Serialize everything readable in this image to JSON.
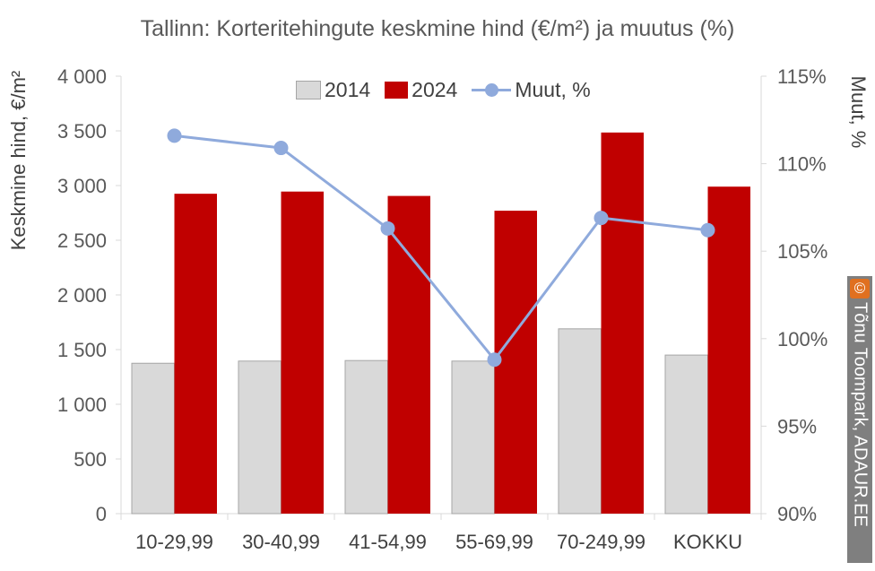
{
  "chart_data": {
    "type": "bar",
    "title": "Tallinn: Korteritehingute keskmine hind (€/m²) ja muutus (%)",
    "ylabel": "Keskmine hind, €/m²",
    "y2label": "Muut, %",
    "categories": [
      "10-29,99",
      "30-40,99",
      "41-54,99",
      "55-69,99",
      "70-249,99",
      "KOKKU"
    ],
    "ylim": [
      0,
      4000
    ],
    "y2lim": [
      90,
      115
    ],
    "yticks": [
      0,
      500,
      1000,
      1500,
      2000,
      2500,
      3000,
      3500,
      4000
    ],
    "ytick_labels": [
      "0",
      "500",
      "1 000",
      "1 500",
      "2 000",
      "2 500",
      "3 000",
      "3 500",
      "4 000"
    ],
    "y2ticks": [
      90,
      95,
      100,
      105,
      110,
      115
    ],
    "y2tick_labels": [
      "90%",
      "95%",
      "100%",
      "105%",
      "110%",
      "115%"
    ],
    "series": [
      {
        "name": "2014",
        "type": "bar",
        "color": "#d9d9d9",
        "values": [
          1375,
          1395,
          1400,
          1395,
          1690,
          1450
        ]
      },
      {
        "name": "2024",
        "type": "bar",
        "color": "#c00000",
        "values": [
          2925,
          2945,
          2905,
          2770,
          3485,
          2990
        ]
      },
      {
        "name": "Muut, %",
        "type": "line",
        "axis": "right",
        "color": "#8faadc",
        "values": [
          111.6,
          110.9,
          106.3,
          98.8,
          106.9,
          106.2
        ]
      }
    ],
    "grid": false,
    "legend": "top"
  },
  "credit": {
    "symbol": "©",
    "text": "Tõnu Toompark, ADAUR.EE"
  }
}
